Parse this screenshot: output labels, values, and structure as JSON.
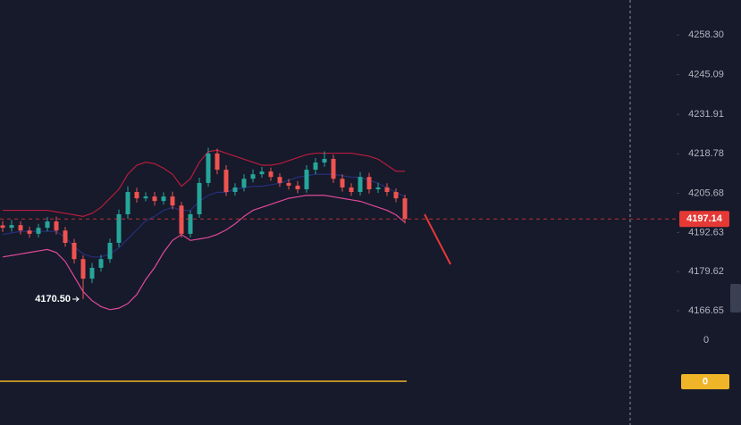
{
  "chart_data": {
    "type": "candlestick",
    "ylim": [
      4161.6,
      4269.9
    ],
    "yticks": [
      {
        "value": 4258.3,
        "label": "4258.30"
      },
      4245.09,
      4231.91,
      4218.78,
      4205.68,
      4192.63,
      4179.62,
      4166.65
    ],
    "up_color": "#26a69a",
    "down_color": "#ef5350",
    "open": [
      4195.0,
      4194.2,
      4195.1,
      4193.3,
      4192.2,
      4194.2,
      4196.3,
      4193.3,
      4189.2,
      4183.8,
      4177.3,
      4180.9,
      4183.8,
      4189.2,
      4198.7,
      4206.1,
      4204.0,
      4204.6,
      4203.1,
      4204.6,
      4201.6,
      4192.2,
      4198.7,
      4209.1,
      4218.9,
      4213.5,
      4206.1,
      4207.6,
      4210.5,
      4212.0,
      4212.9,
      4211.1,
      4209.1,
      4208.2,
      4207.0,
      4213.5,
      4215.9,
      4217.1,
      4210.5,
      4207.6,
      4206.1,
      4211.1,
      4207.0,
      4207.6,
      4206.1,
      4204.0
    ],
    "high": [
      4196.5,
      4196.8,
      4196.4,
      4194.6,
      4195.5,
      4197.8,
      4197.9,
      4194.5,
      4190.5,
      4185.0,
      4182.5,
      4185.2,
      4190.6,
      4200.3,
      4208.0,
      4207.5,
      4206.0,
      4206.1,
      4206.0,
      4206.2,
      4202.8,
      4199.9,
      4210.8,
      4220.8,
      4220.5,
      4215.0,
      4209.0,
      4212.0,
      4213.6,
      4214.4,
      4214.2,
      4212.3,
      4210.4,
      4209.7,
      4215.0,
      4217.4,
      4219.6,
      4218.5,
      4212.0,
      4209.0,
      4212.7,
      4212.5,
      4209.2,
      4209.0,
      4207.3,
      4205.2
    ],
    "low": [
      4192.8,
      4192.9,
      4192.0,
      4190.9,
      4191.0,
      4193.0,
      4192.0,
      4187.9,
      4182.3,
      4170.5,
      4175.8,
      4179.6,
      4182.5,
      4187.8,
      4197.2,
      4202.6,
      4203.0,
      4201.6,
      4201.9,
      4200.3,
      4190.9,
      4191.0,
      4197.5,
      4207.8,
      4212.0,
      4204.8,
      4204.9,
      4206.3,
      4209.3,
      4210.8,
      4209.8,
      4207.8,
      4206.9,
      4205.7,
      4205.9,
      4212.0,
      4214.5,
      4209.1,
      4206.2,
      4204.8,
      4204.9,
      4205.6,
      4205.8,
      4204.8,
      4202.7,
      4195.6
    ],
    "close": [
      4194.2,
      4195.1,
      4193.3,
      4192.2,
      4194.2,
      4196.3,
      4193.3,
      4189.2,
      4183.8,
      4177.3,
      4180.9,
      4183.8,
      4189.2,
      4198.7,
      4206.1,
      4204.0,
      4204.6,
      4203.1,
      4204.6,
      4201.6,
      4192.2,
      4198.7,
      4209.1,
      4218.9,
      4213.5,
      4206.1,
      4207.6,
      4210.5,
      4212.0,
      4212.9,
      4211.1,
      4209.1,
      4208.2,
      4207.0,
      4213.5,
      4215.9,
      4217.1,
      4210.5,
      4207.6,
      4206.1,
      4211.1,
      4207.0,
      4207.6,
      4206.1,
      4204.0,
      4197.14
    ],
    "bands": {
      "upper": {
        "color": "#b71c3c",
        "values": [
          4200,
          4200,
          4200,
          4200,
          4200,
          4200,
          4199.5,
          4199,
          4198.5,
          4198,
          4199,
          4201,
          4204,
          4207,
          4212,
          4215,
          4216,
          4215.5,
          4214,
          4212,
          4208,
          4210.5,
          4216,
          4219.5,
          4220,
          4219,
          4218,
          4217,
          4216,
          4215,
          4215,
          4215.5,
          4216.5,
          4217.5,
          4218.5,
          4219,
          4219,
          4219,
          4219,
          4219,
          4218.5,
          4218,
          4217,
          4215,
          4213,
          4213
        ]
      },
      "middle": {
        "color": "#26307a",
        "values": [
          4192,
          4192.5,
          4193,
          4193,
          4193,
          4193,
          4193,
          4191,
          4188,
          4185.5,
          4184.5,
          4184.5,
          4185.5,
          4187.5,
          4190.5,
          4193.5,
          4196.5,
          4198,
          4200,
          4201,
          4200,
          4200,
          4203,
          4205,
          4206,
          4206,
          4207,
          4207.5,
          4208,
          4208,
          4208.5,
          4209,
          4210,
          4211,
          4211.5,
          4212,
          4212,
          4212,
          4211.5,
          4211,
          4211,
          4210,
          4209,
          4207.5,
          4206,
          4204.5
        ]
      },
      "lower": {
        "color": "#e0489a",
        "values": [
          4184.5,
          4185,
          4185.5,
          4186,
          4186.5,
          4187,
          4186,
          4183,
          4178,
          4173,
          4170,
          4168,
          4167,
          4167.5,
          4169,
          4172,
          4177,
          4181,
          4186,
          4190,
          4192,
          4190,
          4190.5,
          4191,
          4192,
          4193.5,
          4195.5,
          4198,
          4200,
          4201,
          4202,
          4203,
          4204,
          4204.5,
          4205,
          4205,
          4205,
          4204.5,
          4204,
          4203.5,
          4203,
          4202,
          4201,
          4200,
          4198.5,
          4196
        ]
      }
    },
    "last_price": 4197.14,
    "last_price_color": "#e53935",
    "low_annotation": {
      "value": 4170.5,
      "label": "4170.50"
    },
    "indicator": {
      "yticks": [
        0
      ],
      "last_value": 0,
      "color": "#f0b429"
    }
  }
}
